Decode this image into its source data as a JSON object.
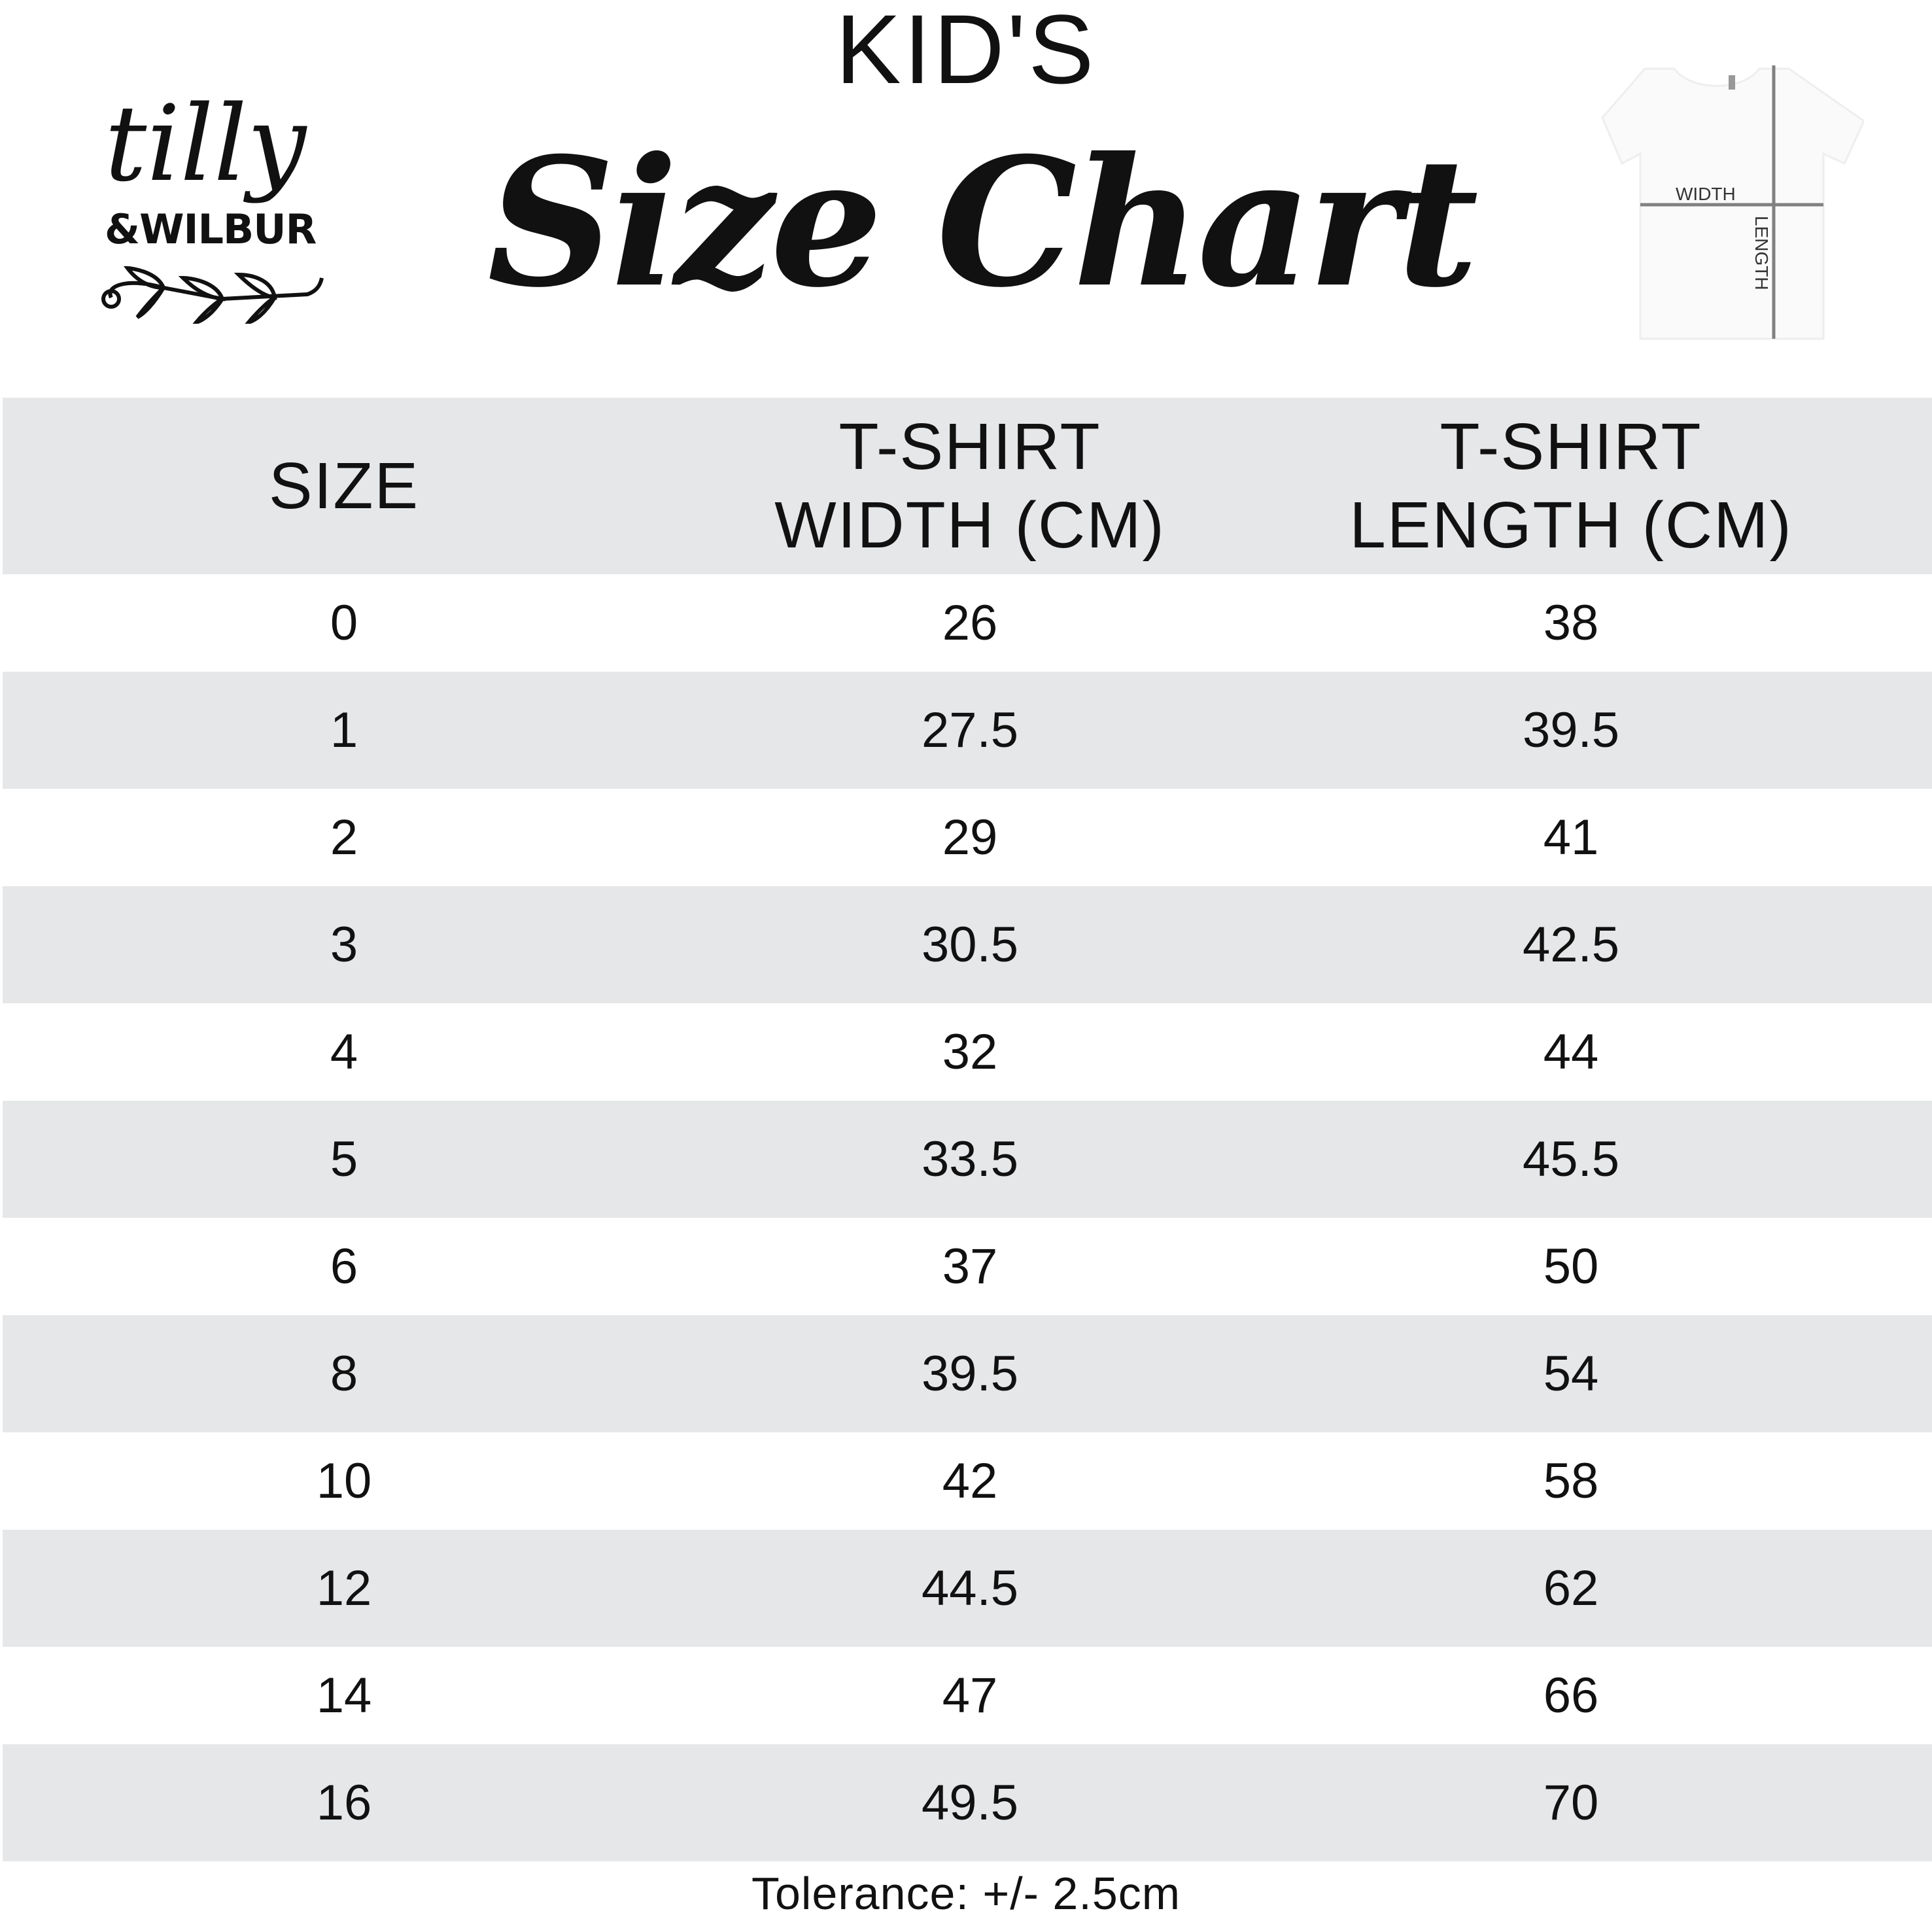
{
  "header": {
    "kicker": "KID'S",
    "title": "Size Chart"
  },
  "logo": {
    "line1": "tilly",
    "line2": "&WILBUR"
  },
  "diagram": {
    "width_label": "WIDTH",
    "length_label": "LENGTH"
  },
  "table": {
    "columns": [
      "SIZE",
      "T-SHIRT\nWIDTH (CM)",
      "T-SHIRT\nLENGTH (CM)"
    ],
    "rows": [
      [
        "0",
        "26",
        "38"
      ],
      [
        "1",
        "27.5",
        "39.5"
      ],
      [
        "2",
        "29",
        "41"
      ],
      [
        "3",
        "30.5",
        "42.5"
      ],
      [
        "4",
        "32",
        "44"
      ],
      [
        "5",
        "33.5",
        "45.5"
      ],
      [
        "6",
        "37",
        "50"
      ],
      [
        "8",
        "39.5",
        "54"
      ],
      [
        "10",
        "42",
        "58"
      ],
      [
        "12",
        "44.5",
        "62"
      ],
      [
        "14",
        "47",
        "66"
      ],
      [
        "16",
        "49.5",
        "70"
      ]
    ]
  },
  "footer": {
    "tolerance": "Tolerance: +/- 2.5cm"
  },
  "colors": {
    "row_stripe": "#e6e7e9",
    "text": "#111111",
    "diagram_line": "#808080"
  }
}
